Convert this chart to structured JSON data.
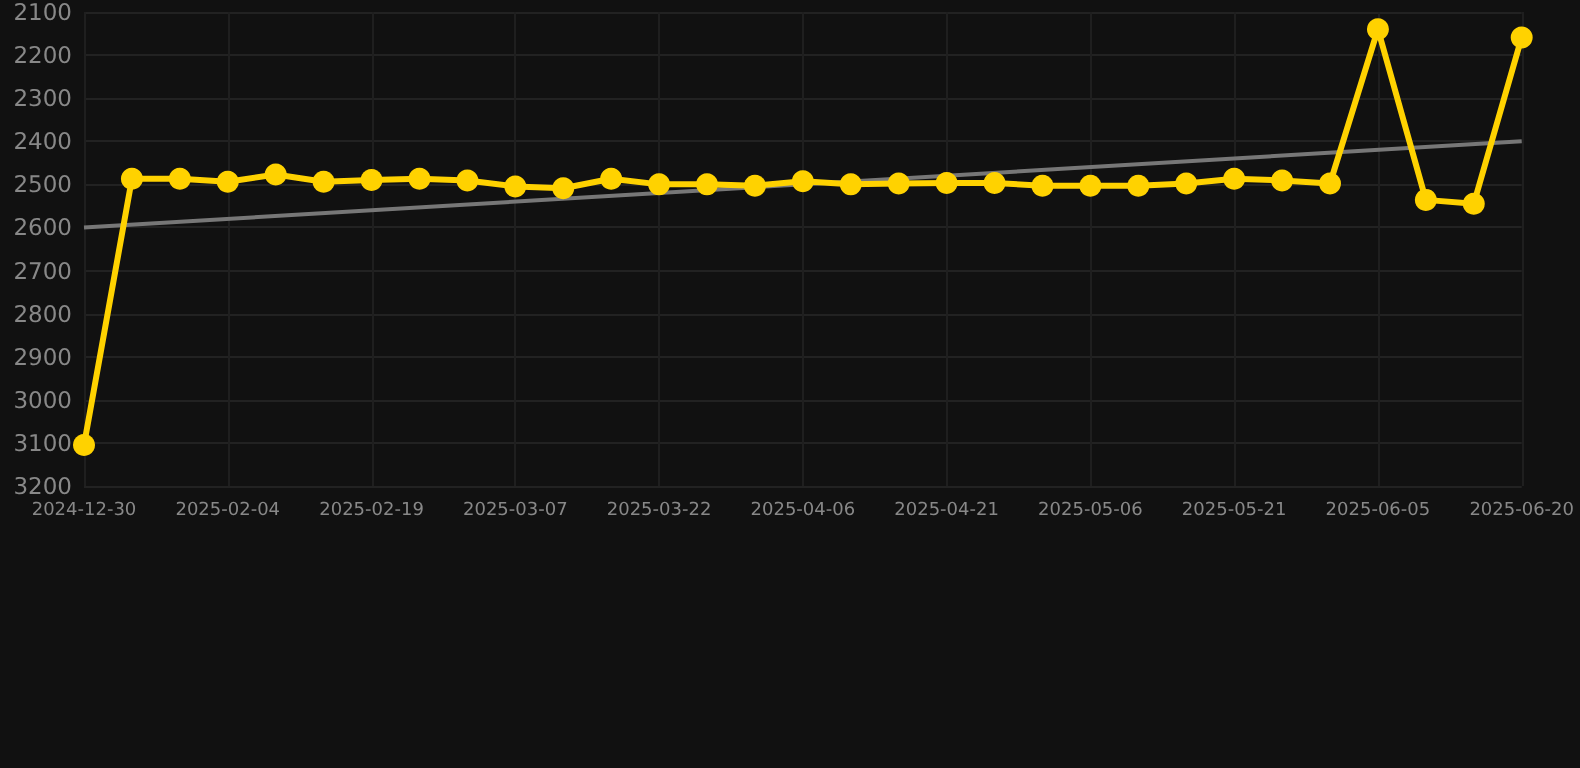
{
  "chart_data": {
    "type": "line",
    "categories": [
      "2024-12-30",
      null,
      null,
      "2025-02-04",
      null,
      null,
      "2025-02-19",
      null,
      null,
      "2025-03-07",
      null,
      null,
      "2025-03-22",
      null,
      null,
      "2025-04-06",
      null,
      null,
      "2025-04-21",
      null,
      null,
      "2025-05-06",
      null,
      null,
      "2025-05-21",
      null,
      null,
      "2025-06-05",
      null,
      null,
      "2025-06-20"
    ],
    "series": [
      {
        "color": "#ffd200",
        "marker": "circle",
        "values": [
          3105,
          2487,
          2487,
          2494,
          2477,
          2494,
          2490,
          2487,
          2491,
          2505,
          2509,
          2487,
          2500,
          2500,
          2503,
          2493,
          2500,
          2498,
          2497,
          2497,
          2503,
          2503,
          2503,
          2498,
          2487,
          2491,
          2498,
          2140,
          2536,
          2545,
          2159
        ]
      },
      {
        "color": "#777777",
        "marker": "none",
        "values": [
          2600,
          null,
          null,
          null,
          null,
          null,
          null,
          null,
          null,
          null,
          null,
          null,
          null,
          null,
          null,
          null,
          null,
          null,
          null,
          null,
          null,
          null,
          null,
          null,
          null,
          null,
          null,
          null,
          null,
          null,
          2400
        ]
      }
    ],
    "ylim": [
      3200,
      2100
    ],
    "yticks": [
      2100,
      2200,
      2300,
      2400,
      2500,
      2600,
      2700,
      2800,
      2900,
      3000,
      3100,
      3200
    ],
    "grid": true
  }
}
